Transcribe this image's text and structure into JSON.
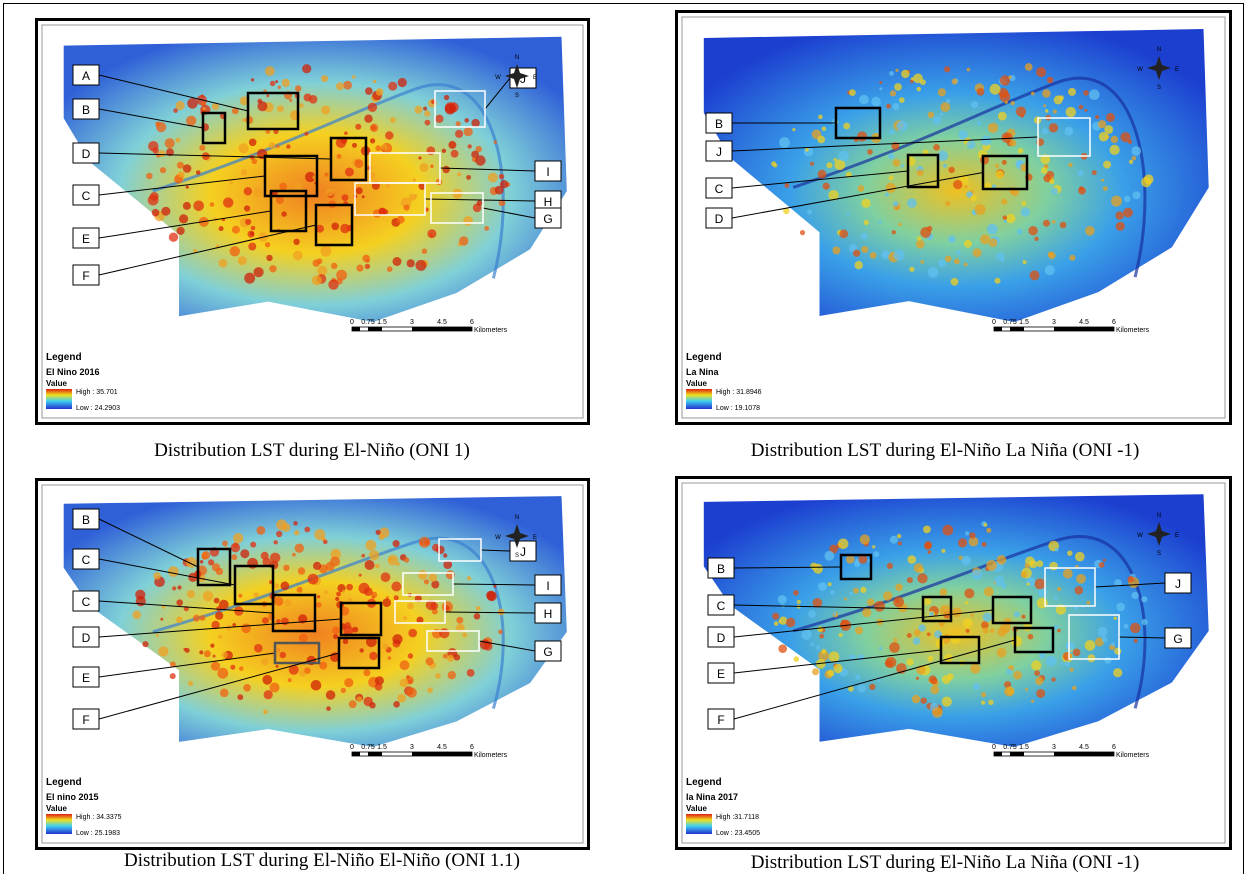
{
  "panels": [
    {
      "labels": [
        "A",
        "B",
        "D",
        "C",
        "E",
        "F",
        "J",
        "I",
        "H",
        "G"
      ],
      "compass": [
        "N",
        "S",
        "E",
        "W"
      ],
      "scale": {
        "ticks": [
          "0",
          "0.75",
          "1.5",
          "3",
          "4.5",
          "6"
        ],
        "unit": "Kilometers"
      },
      "legend": {
        "heading": "Legend",
        "title": "El Nino 2016",
        "value_label": "Value",
        "high": "High : 35.701",
        "low": "Low : 24.2903"
      },
      "caption": "Distribution LST during El-Niño (ONI 1)"
    },
    {
      "labels": [
        "B",
        "J",
        "C",
        "D"
      ],
      "compass": [
        "N",
        "S",
        "E",
        "W"
      ],
      "scale": {
        "ticks": [
          "0",
          "0.75",
          "1.5",
          "3",
          "4.5",
          "6"
        ],
        "unit": "Kilometers"
      },
      "legend": {
        "heading": "Legend",
        "title": "La Nina",
        "value_label": "Value",
        "high": "High : 31.8946",
        "low": "Low : 19.1078"
      },
      "caption": "Distribution LST during El-Niño La Niña (ONI -1)"
    },
    {
      "labels": [
        "B",
        "C",
        "C",
        "D",
        "E",
        "F",
        "J",
        "I",
        "H",
        "G"
      ],
      "compass": [
        "N",
        "S",
        "E",
        "W"
      ],
      "scale": {
        "ticks": [
          "0",
          "0.75",
          "1.5",
          "3",
          "4.5",
          "6"
        ],
        "unit": "Kilometers"
      },
      "legend": {
        "heading": "Legend",
        "title": "El nino 2015",
        "value_label": "Value",
        "high": "High : 34.3375",
        "low": "Low : 25.1983"
      },
      "caption": "Distribution LST during El-Niño El-Niño (ONI 1.1)"
    },
    {
      "labels": [
        "B",
        "C",
        "D",
        "E",
        "F",
        "J",
        "G"
      ],
      "compass": [
        "N",
        "S",
        "E",
        "W"
      ],
      "scale": {
        "ticks": [
          "0",
          "0.75",
          "1.5",
          "3",
          "4.5",
          "6"
        ],
        "unit": "Kilometers"
      },
      "legend": {
        "heading": "Legend",
        "title": "la Nina 2017",
        "value_label": "Value",
        "high": "High :31.7118",
        "low": "Low : 23.4505"
      },
      "caption": "Distribution LST during El-Niño La Niña (ONI -1)"
    }
  ]
}
